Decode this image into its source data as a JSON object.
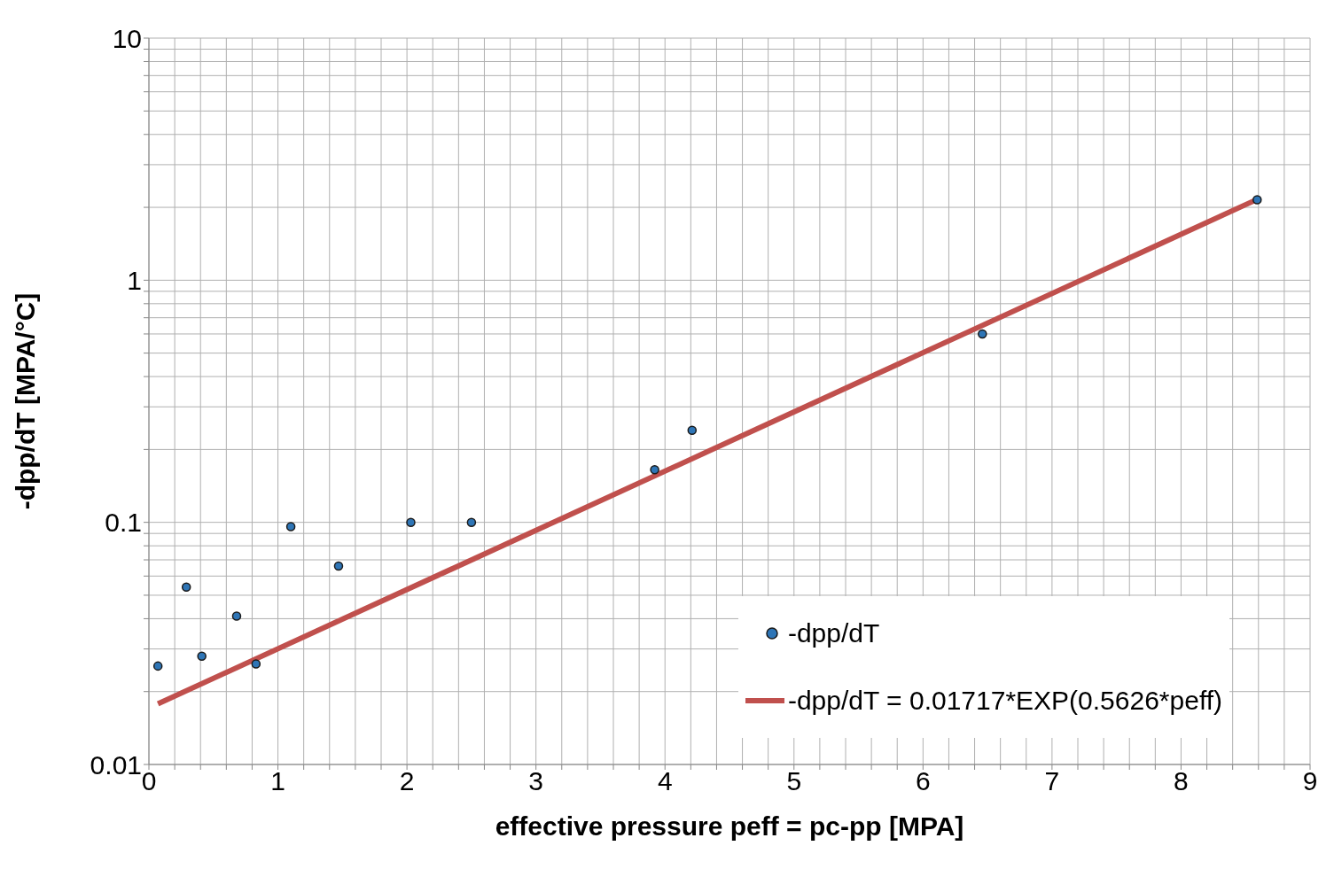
{
  "chart_data": {
    "type": "scatter",
    "xlabel": "effective pressure peff = pc-pp [MPA]",
    "ylabel": "-dpp/dT [MPA/°C]",
    "log": "y",
    "grid": true,
    "legend": "bottom right",
    "xlim": [
      0,
      9
    ],
    "ylim": [
      0.01,
      10
    ],
    "xticks": [
      0,
      {
        "value": 0.2,
        "label": null
      },
      {
        "value": 0.4,
        "label": null
      },
      {
        "value": 0.6,
        "label": null
      },
      {
        "value": 0.8,
        "label": null
      },
      1,
      {
        "value": 1.2,
        "label": null
      },
      {
        "value": 1.4,
        "label": null
      },
      {
        "value": 1.6,
        "label": null
      },
      {
        "value": 1.8,
        "label": null
      },
      2,
      {
        "value": 2.2,
        "label": null
      },
      {
        "value": 2.4,
        "label": null
      },
      {
        "value": 2.6,
        "label": null
      },
      {
        "value": 2.8,
        "label": null
      },
      3,
      {
        "value": 3.2,
        "label": null
      },
      {
        "value": 3.4,
        "label": null
      },
      {
        "value": 3.6,
        "label": null
      },
      {
        "value": 3.8,
        "label": null
      },
      4,
      {
        "value": 4.2,
        "label": null
      },
      {
        "value": 4.4,
        "label": null
      },
      {
        "value": 4.6,
        "label": null
      },
      {
        "value": 4.8,
        "label": null
      },
      5,
      {
        "value": 5.2,
        "label": null
      },
      {
        "value": 5.4,
        "label": null
      },
      {
        "value": 5.6,
        "label": null
      },
      {
        "value": 5.8,
        "label": null
      },
      6,
      {
        "value": 6.2,
        "label": null
      },
      {
        "value": 6.4,
        "label": null
      },
      {
        "value": 6.6,
        "label": null
      },
      {
        "value": 6.8,
        "label": null
      },
      7,
      {
        "value": 7.2,
        "label": null
      },
      {
        "value": 7.4,
        "label": null
      },
      {
        "value": 7.6,
        "label": null
      },
      {
        "value": 7.8,
        "label": null
      },
      8,
      {
        "value": 8.2,
        "label": null
      },
      {
        "value": 8.4,
        "label": null
      },
      {
        "value": 8.6,
        "label": null
      },
      {
        "value": 8.8,
        "label": null
      },
      9
    ],
    "yticks": [
      0.01,
      {
        "value": 0.02,
        "label": null
      },
      {
        "value": 0.03,
        "label": null
      },
      {
        "value": 0.04,
        "label": null
      },
      {
        "value": 0.05,
        "label": null
      },
      {
        "value": 0.06,
        "label": null
      },
      {
        "value": 0.07,
        "label": null
      },
      {
        "value": 0.08,
        "label": null
      },
      {
        "value": 0.09,
        "label": null
      },
      0.1,
      {
        "value": 0.2,
        "label": null
      },
      {
        "value": 0.3,
        "label": null
      },
      {
        "value": 0.4,
        "label": null
      },
      {
        "value": 0.5,
        "label": null
      },
      {
        "value": 0.6,
        "label": null
      },
      {
        "value": 0.7,
        "label": null
      },
      {
        "value": 0.8,
        "label": null
      },
      {
        "value": 0.9,
        "label": null
      },
      1,
      {
        "value": 2,
        "label": null
      },
      {
        "value": 3,
        "label": null
      },
      {
        "value": 4,
        "label": null
      },
      {
        "value": 5,
        "label": null
      },
      {
        "value": 6,
        "label": null
      },
      {
        "value": 7,
        "label": null
      },
      {
        "value": 8,
        "label": null
      },
      {
        "value": 9,
        "label": null
      },
      10
    ],
    "series": [
      {
        "name": "-dpp/dT",
        "color": "#2e75b6",
        "marker": "circle",
        "x": [
          0.07,
          0.29,
          0.41,
          0.68,
          0.83,
          1.1,
          1.47,
          2.03,
          2.5,
          3.92,
          4.21,
          6.46,
          8.59
        ],
        "values": [
          0.0255,
          0.054,
          0.028,
          0.041,
          0.026,
          0.096,
          0.066,
          0.1,
          0.1,
          0.165,
          0.24,
          0.6,
          2.15
        ]
      },
      {
        "name": "-dpp/dT = 0.01717*EXP(0.5626*peff)",
        "type": "line",
        "color": "#c0504d",
        "line_style": "solid",
        "marker": "none",
        "x": [
          0.07,
          8.6
        ],
        "values": [
          0.0178,
          2.17
        ]
      }
    ]
  }
}
